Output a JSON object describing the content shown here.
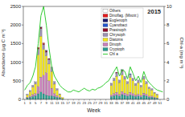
{
  "chart_data": {
    "type": "bar",
    "title": "2015",
    "stacked": true,
    "legend": "top-right",
    "grid": false,
    "x_label": "Week",
    "y_label": "Abundance (µg C m⁻³)",
    "y2_label": "Chl-a (mg m⁻³)",
    "categories": [
      1,
      null,
      3,
      null,
      5,
      null,
      7,
      null,
      9,
      null,
      11,
      null,
      13,
      null,
      15,
      null,
      17,
      null,
      19,
      null,
      21,
      null,
      23,
      null,
      25,
      null,
      27,
      null,
      29,
      null,
      31,
      null,
      33,
      null,
      35,
      null,
      37,
      null,
      39,
      null,
      41,
      null,
      43,
      null,
      45,
      null,
      47,
      null,
      49,
      null,
      51,
      null
    ],
    "ylim": [
      0,
      2500
    ],
    "yticks": [
      0,
      500,
      1000,
      1500,
      2000,
      2500
    ],
    "y2lim": [
      0,
      10
    ],
    "y2ticks": [
      0,
      2,
      4,
      6,
      8,
      10
    ],
    "series": [
      {
        "name": "Others",
        "type": "bar",
        "color": "#ffffff",
        "values": [
          0,
          0,
          0,
          0,
          10,
          0,
          10,
          0,
          0,
          0,
          0,
          0,
          0,
          0,
          0,
          0,
          0,
          0,
          0,
          0,
          0,
          0,
          0,
          0,
          0,
          0,
          0,
          0,
          0,
          0,
          0,
          0,
          10,
          0,
          0,
          0,
          10,
          0,
          0,
          0,
          0,
          0,
          0,
          0,
          0,
          0,
          0,
          0,
          0,
          0,
          0,
          0
        ]
      },
      {
        "name": "Dinoflag. (Mixotr.)",
        "type": "bar",
        "color": "#e31a1c",
        "values": [
          0,
          0,
          0,
          0,
          0,
          20,
          0,
          20,
          0,
          0,
          0,
          0,
          0,
          0,
          0,
          0,
          0,
          0,
          0,
          0,
          0,
          0,
          0,
          0,
          0,
          0,
          0,
          0,
          0,
          0,
          0,
          0,
          0,
          0,
          0,
          0,
          0,
          0,
          0,
          0,
          0,
          0,
          0,
          0,
          0,
          0,
          0,
          0,
          0,
          0,
          0,
          0
        ]
      },
      {
        "name": "Euglenoph",
        "type": "bar",
        "color": "#1a1a6e",
        "values": [
          0,
          0,
          0,
          0,
          0,
          0,
          0,
          0,
          20,
          0,
          0,
          0,
          0,
          0,
          0,
          0,
          0,
          0,
          0,
          0,
          0,
          0,
          0,
          0,
          0,
          0,
          0,
          0,
          0,
          0,
          0,
          0,
          0,
          0,
          0,
          0,
          0,
          0,
          0,
          0,
          0,
          0,
          0,
          0,
          0,
          0,
          0,
          0,
          0,
          0,
          0,
          0
        ]
      },
      {
        "name": "Cyanobact",
        "type": "bar",
        "color": "#2255cc",
        "values": [
          0,
          0,
          0,
          0,
          0,
          0,
          10,
          0,
          0,
          0,
          0,
          0,
          0,
          0,
          0,
          0,
          0,
          0,
          0,
          0,
          0,
          0,
          0,
          0,
          0,
          0,
          0,
          0,
          0,
          0,
          0,
          0,
          0,
          0,
          0,
          0,
          20,
          0,
          0,
          20,
          0,
          0,
          0,
          0,
          0,
          0,
          0,
          0,
          0,
          0,
          0,
          0
        ]
      },
      {
        "name": "Prasinoph",
        "type": "bar",
        "color": "#8b0a2a",
        "values": [
          0,
          0,
          0,
          0,
          0,
          30,
          40,
          30,
          30,
          30,
          0,
          0,
          0,
          0,
          0,
          0,
          0,
          0,
          0,
          0,
          0,
          0,
          0,
          0,
          0,
          0,
          0,
          0,
          0,
          0,
          0,
          0,
          0,
          0,
          20,
          0,
          20,
          0,
          0,
          0,
          0,
          0,
          0,
          0,
          0,
          0,
          0,
          0,
          0,
          0,
          0,
          0
        ]
      },
      {
        "name": "Chrysoph",
        "type": "bar",
        "color": "#9b8fb0",
        "values": [
          0,
          20,
          30,
          50,
          60,
          150,
          200,
          120,
          100,
          120,
          120,
          70,
          40,
          20,
          0,
          0,
          0,
          0,
          0,
          0,
          0,
          0,
          0,
          0,
          0,
          0,
          0,
          0,
          0,
          0,
          0,
          0,
          60,
          70,
          90,
          70,
          100,
          80,
          60,
          80,
          70,
          60,
          70,
          50,
          80,
          60,
          40,
          40,
          20,
          20,
          0,
          0
        ]
      },
      {
        "name": "Diatoms",
        "type": "bar",
        "color": "#f2e51b",
        "values": [
          0,
          60,
          120,
          200,
          250,
          850,
          1100,
          700,
          450,
          450,
          450,
          250,
          150,
          70,
          30,
          0,
          0,
          0,
          0,
          0,
          0,
          0,
          0,
          0,
          0,
          0,
          0,
          0,
          0,
          0,
          0,
          0,
          250,
          340,
          430,
          310,
          450,
          370,
          280,
          400,
          340,
          250,
          310,
          220,
          370,
          280,
          200,
          160,
          110,
          80,
          0,
          0
        ]
      },
      {
        "name": "Dinoph",
        "type": "bar",
        "color": "#c97fb8",
        "values": [
          0,
          20,
          30,
          50,
          60,
          200,
          400,
          500,
          600,
          400,
          200,
          80,
          40,
          20,
          0,
          0,
          0,
          0,
          0,
          0,
          0,
          0,
          0,
          0,
          0,
          0,
          0,
          0,
          0,
          0,
          0,
          0,
          40,
          60,
          70,
          50,
          80,
          60,
          50,
          70,
          60,
          40,
          50,
          40,
          60,
          50,
          30,
          30,
          20,
          10,
          0,
          0
        ]
      },
      {
        "name": "Cryptoph",
        "type": "bar",
        "color": "#2a9d8f",
        "values": [
          0,
          40,
          60,
          80,
          100,
          150,
          200,
          150,
          120,
          100,
          100,
          80,
          60,
          40,
          20,
          0,
          0,
          0,
          0,
          0,
          0,
          0,
          0,
          0,
          0,
          0,
          0,
          0,
          0,
          0,
          0,
          0,
          80,
          100,
          120,
          90,
          130,
          110,
          90,
          120,
          100,
          80,
          90,
          70,
          110,
          90,
          60,
          60,
          40,
          30,
          0,
          0
        ]
      },
      {
        "name": "Chl a",
        "type": "line",
        "axis": "y2",
        "color": "#33cc33",
        "values": [
          1.0,
          1.5,
          1.8,
          2.5,
          3.5,
          6.0,
          9.0,
          10.0,
          8.0,
          5.5,
          3.5,
          2.5,
          2.0,
          1.5,
          1.2,
          1.0,
          0.8,
          0.8,
          1.0,
          0.9,
          0.8,
          1.0,
          1.2,
          1.0,
          0.9,
          1.1,
          1.0,
          1.2,
          1.3,
          1.5,
          1.8,
          2.0,
          2.5,
          3.0,
          3.5,
          2.5,
          3.2,
          3.0,
          2.2,
          3.5,
          2.8,
          2.0,
          2.5,
          1.8,
          3.0,
          2.2,
          1.8,
          1.5,
          1.2,
          1.0,
          0.9,
          0.8
        ]
      }
    ]
  }
}
